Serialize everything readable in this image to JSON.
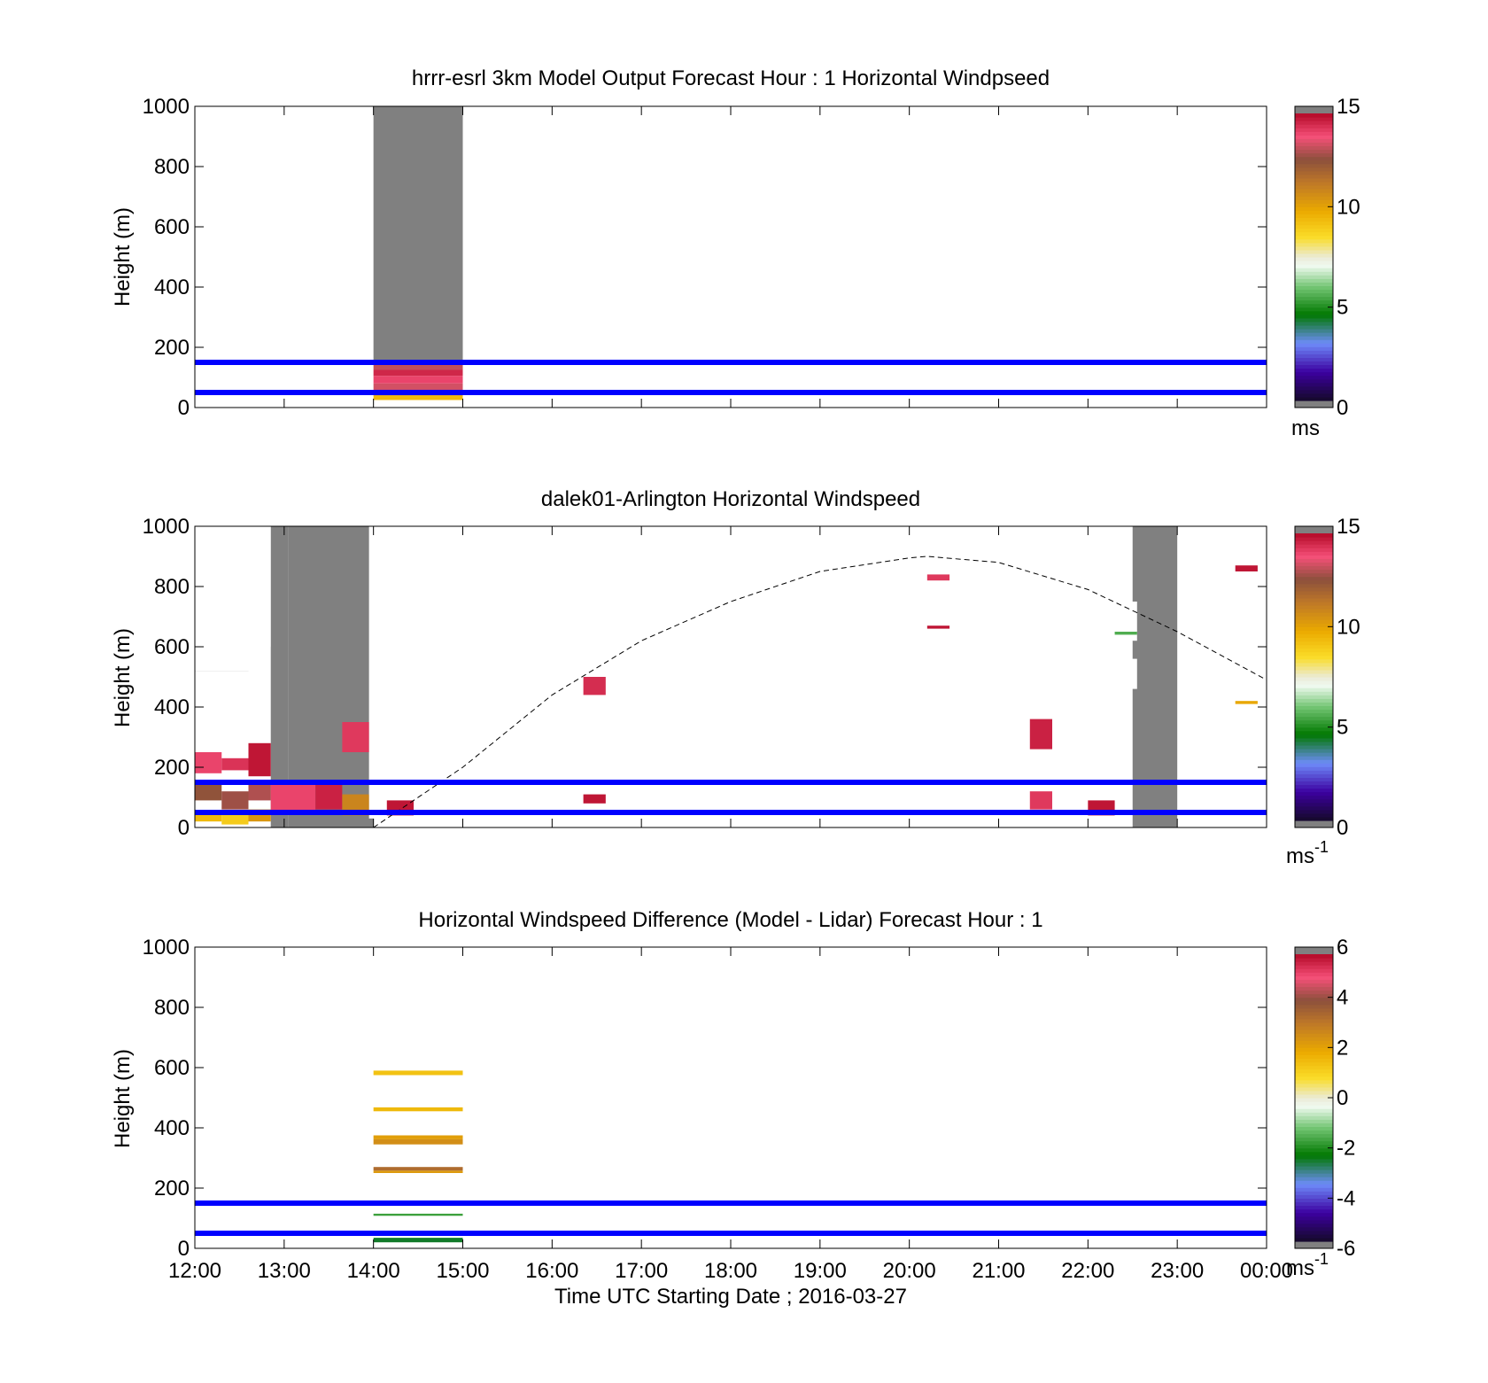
{
  "chart_data": [
    {
      "type": "heatmap",
      "title": "hrrr-esrl 3km Model Output   Forecast Hour : 1 Horizontal Windpseed",
      "xlabel": "",
      "ylabel": "Height (m)",
      "xlim": [
        "12:00",
        "00:00"
      ],
      "xticks": [
        "12:00",
        "13:00",
        "14:00",
        "15:00",
        "16:00",
        "17:00",
        "18:00",
        "19:00",
        "20:00",
        "21:00",
        "22:00",
        "23:00",
        "00:00"
      ],
      "show_xtick_labels": false,
      "ylim": [
        0,
        1000
      ],
      "yticks": [
        0,
        200,
        400,
        600,
        800,
        1000
      ],
      "grid": false,
      "colorbar": {
        "min": 0,
        "max": 15,
        "ticks": [
          0,
          5,
          10,
          15
        ],
        "unit": "ms",
        "unit_exp": "",
        "scale": "speed"
      },
      "reference_lines_m": [
        50,
        150
      ],
      "cells": [
        {
          "t0": 14.0,
          "t1": 15.0,
          "z0": 150,
          "z1": 1000,
          "v": null
        },
        {
          "t0": 14.0,
          "t1": 15.0,
          "z0": 125,
          "z1": 150,
          "v": 13.2
        },
        {
          "t0": 14.0,
          "t1": 15.0,
          "z0": 105,
          "z1": 125,
          "v": 14.5
        },
        {
          "t0": 14.0,
          "t1": 15.0,
          "z0": 80,
          "z1": 105,
          "v": 14.0
        },
        {
          "t0": 14.0,
          "t1": 15.0,
          "z0": 55,
          "z1": 80,
          "v": 13.4
        },
        {
          "t0": 14.0,
          "t1": 15.0,
          "z0": 40,
          "z1": 50,
          "v": 11.6
        },
        {
          "t0": 14.0,
          "t1": 15.0,
          "z0": 25,
          "z1": 40,
          "v": 9.5
        }
      ]
    },
    {
      "type": "heatmap",
      "title": "dalek01-Arlington  Horizontal Windspeed",
      "xlabel": "",
      "ylabel": "Height (m)",
      "xlim": [
        "12:00",
        "00:00"
      ],
      "xticks": [
        "12:00",
        "13:00",
        "14:00",
        "15:00",
        "16:00",
        "17:00",
        "18:00",
        "19:00",
        "20:00",
        "21:00",
        "22:00",
        "23:00",
        "00:00"
      ],
      "show_xtick_labels": false,
      "ylim": [
        0,
        1000
      ],
      "yticks": [
        0,
        200,
        400,
        600,
        800,
        1000
      ],
      "grid": false,
      "colorbar": {
        "min": 0,
        "max": 15,
        "ticks": [
          0,
          5,
          10,
          15
        ],
        "unit": "ms",
        "unit_exp": "-1",
        "scale": "speed"
      },
      "reference_lines_m": [
        50,
        150
      ],
      "boundary_layer_curve": {
        "t": [
          14.0,
          15.0,
          16.0,
          17.0,
          18.0,
          19.0,
          20.0,
          20.2,
          21.0,
          22.0,
          23.0,
          24.0
        ],
        "z": [
          0,
          200,
          440,
          620,
          750,
          850,
          895,
          900,
          880,
          790,
          650,
          490
        ]
      },
      "missing_columns": [
        {
          "t0": 12.0,
          "t1": 12.6,
          "z_top": 1000,
          "z_bottom": 520
        },
        {
          "t0": 12.6,
          "t1": 12.85,
          "z_top": 1000,
          "z_bottom": 600
        },
        {
          "t0": 12.85,
          "t1": 13.05,
          "z_top": 1000,
          "z_bottom": 0
        },
        {
          "t0": 13.05,
          "t1": 14.0,
          "z_top": 1000,
          "z_bottom": 0
        },
        {
          "t0": 22.5,
          "t1": 23.0,
          "z_top": 1000,
          "z_bottom": 0
        }
      ],
      "white_gaps": [
        {
          "t0": 12.0,
          "t1": 12.6,
          "z0": 520,
          "z1": 1000
        },
        {
          "t0": 12.6,
          "t1": 12.85,
          "z0": 600,
          "z1": 1000
        },
        {
          "t0": 13.95,
          "t1": 14.15,
          "z0": 30,
          "z1": 1000
        },
        {
          "t0": 16.35,
          "t1": 16.6,
          "z0": 560,
          "z1": 770
        },
        {
          "t0": 16.35,
          "t1": 16.6,
          "z0": 350,
          "z1": 430
        },
        {
          "t0": 16.6,
          "t1": 16.85,
          "z0": 100,
          "z1": 200
        },
        {
          "t0": 15.65,
          "t1": 16.0,
          "z0": 720,
          "z1": 1000
        },
        {
          "t0": 22.3,
          "t1": 22.55,
          "z0": 460,
          "z1": 560
        },
        {
          "t0": 22.3,
          "t1": 22.55,
          "z0": 620,
          "z1": 750
        }
      ],
      "cells": [
        {
          "t0": 12.0,
          "t1": 12.3,
          "z0": 180,
          "z1": 250,
          "v": 14.0
        },
        {
          "t0": 12.0,
          "t1": 12.3,
          "z0": 90,
          "z1": 150,
          "v": 12.5
        },
        {
          "t0": 12.0,
          "t1": 12.3,
          "z0": 20,
          "z1": 50,
          "v": 9.5
        },
        {
          "t0": 12.3,
          "t1": 12.6,
          "z0": 190,
          "z1": 230,
          "v": 14.3
        },
        {
          "t0": 12.3,
          "t1": 12.6,
          "z0": 60,
          "z1": 120,
          "v": 12.8
        },
        {
          "t0": 12.3,
          "t1": 12.6,
          "z0": 10,
          "z1": 50,
          "v": 9.0
        },
        {
          "t0": 12.6,
          "t1": 12.85,
          "z0": 170,
          "z1": 280,
          "v": 14.8
        },
        {
          "t0": 12.6,
          "t1": 12.85,
          "z0": 90,
          "z1": 150,
          "v": 13.0
        },
        {
          "t0": 12.6,
          "t1": 12.85,
          "z0": 20,
          "z1": 60,
          "v": 10.5
        },
        {
          "t0": 12.85,
          "t1": 13.35,
          "z0": 50,
          "z1": 150,
          "v": 14.0
        },
        {
          "t0": 13.35,
          "t1": 13.65,
          "z0": 60,
          "z1": 150,
          "v": 14.6
        },
        {
          "t0": 13.65,
          "t1": 13.95,
          "z0": 250,
          "z1": 350,
          "v": 14.2
        },
        {
          "t0": 13.65,
          "t1": 13.95,
          "z0": 40,
          "z1": 110,
          "v": 11.0
        },
        {
          "t0": 14.15,
          "t1": 14.45,
          "z0": 40,
          "z1": 90,
          "v": 14.8
        },
        {
          "t0": 16.35,
          "t1": 16.6,
          "z0": 440,
          "z1": 500,
          "v": 14.4
        },
        {
          "t0": 16.35,
          "t1": 16.6,
          "z0": 80,
          "z1": 110,
          "v": 14.8
        },
        {
          "t0": 20.2,
          "t1": 20.45,
          "z0": 820,
          "z1": 840,
          "v": 14.2
        },
        {
          "t0": 20.2,
          "t1": 20.45,
          "z0": 660,
          "z1": 670,
          "v": 14.8
        },
        {
          "t0": 21.35,
          "t1": 21.6,
          "z0": 260,
          "z1": 360,
          "v": 14.6
        },
        {
          "t0": 21.35,
          "t1": 21.6,
          "z0": 60,
          "z1": 120,
          "v": 14.2
        },
        {
          "t0": 22.0,
          "t1": 22.3,
          "z0": 40,
          "z1": 90,
          "v": 14.8
        },
        {
          "t0": 22.3,
          "t1": 22.55,
          "z0": 640,
          "z1": 650,
          "v": 5.5
        },
        {
          "t0": 23.65,
          "t1": 23.9,
          "z0": 850,
          "z1": 870,
          "v": 14.8
        },
        {
          "t0": 23.65,
          "t1": 23.9,
          "z0": 410,
          "z1": 420,
          "v": 10.0
        }
      ]
    },
    {
      "type": "heatmap",
      "title": "Horizontal Windspeed Difference (Model - Lidar) Forecast Hour : 1",
      "xlabel": "Time UTC  Starting Date ; 2016-03-27",
      "ylabel": "Height (m)",
      "xlim": [
        "12:00",
        "00:00"
      ],
      "xticks": [
        "12:00",
        "13:00",
        "14:00",
        "15:00",
        "16:00",
        "17:00",
        "18:00",
        "19:00",
        "20:00",
        "21:00",
        "22:00",
        "23:00",
        "00:00"
      ],
      "show_xtick_labels": true,
      "ylim": [
        0,
        1000
      ],
      "yticks": [
        0,
        200,
        400,
        600,
        800,
        1000
      ],
      "grid": false,
      "colorbar": {
        "min": -6,
        "max": 6,
        "ticks": [
          -6,
          -4,
          -2,
          0,
          2,
          4,
          6
        ],
        "unit": "ms",
        "unit_exp": "-1",
        "scale": "diff"
      },
      "reference_lines_m": [
        50,
        150
      ],
      "cells": [
        {
          "t0": 14.0,
          "t1": 15.0,
          "z0": 575,
          "z1": 590,
          "v": 1.4
        },
        {
          "t0": 14.0,
          "t1": 15.0,
          "z0": 455,
          "z1": 468,
          "v": 1.6
        },
        {
          "t0": 14.0,
          "t1": 15.0,
          "z0": 345,
          "z1": 362,
          "v": 2.6
        },
        {
          "t0": 14.0,
          "t1": 15.0,
          "z0": 362,
          "z1": 375,
          "v": 2.2
        },
        {
          "t0": 14.0,
          "t1": 15.0,
          "z0": 250,
          "z1": 258,
          "v": 2.3
        },
        {
          "t0": 14.0,
          "t1": 15.0,
          "z0": 258,
          "z1": 270,
          "v": 3.4
        },
        {
          "t0": 14.0,
          "t1": 15.0,
          "z0": 108,
          "z1": 115,
          "v": -1.8
        },
        {
          "t0": 14.0,
          "t1": 15.0,
          "z0": 20,
          "z1": 35,
          "v": -2.6
        }
      ]
    }
  ]
}
